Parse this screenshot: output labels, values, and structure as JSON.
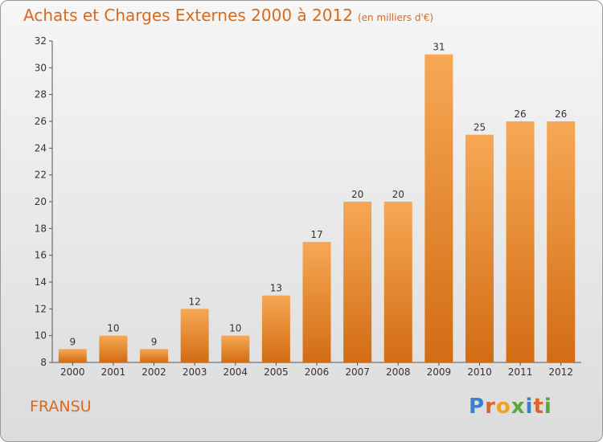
{
  "header": {
    "title": "Achats et Charges Externes 2000 à 2012",
    "subtitle": "(en milliers d'€)"
  },
  "footer": {
    "commune": "FRANSU",
    "logo_letters": [
      "P",
      "r",
      "o",
      "x",
      "i",
      "t",
      "i"
    ],
    "logo_colors": [
      "#3a7fd0",
      "#e0622b",
      "#f2a21e",
      "#5aa83a",
      "#3a7fd0",
      "#e0622b",
      "#5aa83a"
    ]
  },
  "colors": {
    "bar_top": "#f7a854",
    "bar_bottom": "#d26c14",
    "title": "#d9691c"
  },
  "chart_data": {
    "type": "bar",
    "title": "Achats et Charges Externes 2000 à 2012",
    "categories": [
      "2000",
      "2001",
      "2002",
      "2003",
      "2004",
      "2005",
      "2006",
      "2007",
      "2008",
      "2009",
      "2010",
      "2011",
      "2012"
    ],
    "values": [
      9,
      10,
      9,
      12,
      10,
      13,
      17,
      20,
      20,
      31,
      25,
      26,
      26
    ],
    "ylim": [
      8,
      32
    ],
    "yticks": [
      8,
      10,
      12,
      14,
      16,
      18,
      20,
      22,
      24,
      26,
      28,
      30,
      32
    ],
    "grid": false,
    "legend": "none"
  }
}
